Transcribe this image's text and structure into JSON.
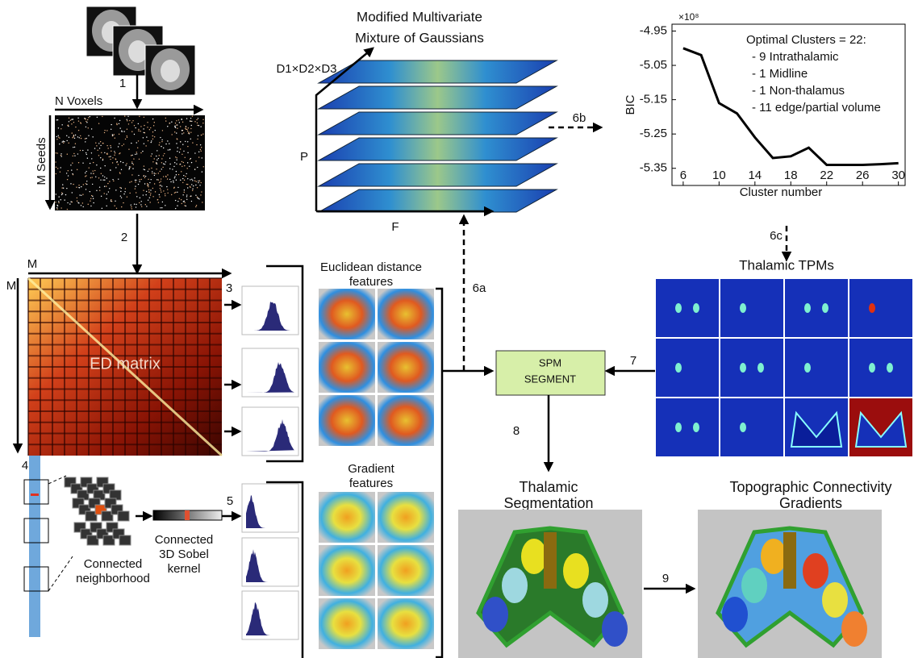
{
  "step_labels": [
    "1",
    "2",
    "3",
    "4",
    "5",
    "6a",
    "6b",
    "6c",
    "7",
    "8",
    "9"
  ],
  "seeds_matrix": {
    "x_label": "N Voxels",
    "y_label": "M Seeds"
  },
  "ed_matrix": {
    "x_label": "M",
    "y_label": "M",
    "label": "ED matrix"
  },
  "neighborhood": {
    "label": [
      "Connected",
      "neighborhood"
    ]
  },
  "sobel": {
    "label": [
      "Connected",
      "3D Sobel",
      "kernel"
    ]
  },
  "mixture": {
    "title": [
      "Modified Multivariate",
      "Mixture of Gaussians"
    ],
    "dims": "D1×D2×D3",
    "p_axis": "P",
    "f_axis": "F"
  },
  "ed_features": {
    "title": [
      "Euclidean distance",
      "features"
    ]
  },
  "gradient_features": {
    "title": [
      "Gradient",
      "features"
    ]
  },
  "spm": {
    "label": [
      "SPM",
      "SEGMENT"
    ]
  },
  "tpms": {
    "title": "Thalamic TPMs"
  },
  "segmentation": {
    "title": [
      "Thalamic",
      "Segmentation"
    ]
  },
  "gradients": {
    "title": [
      "Topographic Connectivity",
      "Gradients"
    ]
  },
  "bic_plot": {
    "type": "line",
    "y_label": "BIC",
    "x_label": "Cluster number",
    "multiplier": "×10⁸",
    "x": [
      6,
      8,
      10,
      12,
      14,
      16,
      18,
      20,
      22,
      24,
      26,
      28,
      30
    ],
    "values": [
      -5.0,
      -5.02,
      -5.16,
      -5.19,
      -5.26,
      -5.32,
      -5.315,
      -5.29,
      -5.34,
      -5.34,
      -5.34,
      -5.338,
      -5.335
    ],
    "color": "#000000",
    "xlim": [
      4.75,
      30.75
    ],
    "ylim": [
      -5.4,
      -4.93
    ],
    "xticks": [
      6,
      10,
      14,
      18,
      22,
      26,
      30
    ],
    "yticks": [
      -4.95,
      -5.05,
      -5.15,
      -5.25,
      -5.35
    ],
    "annotation": [
      "Optimal Clusters = 22:",
      "- 9 Intrathalamic",
      "- 1 Midline",
      "- 1 Non-thalamus",
      "- 11 edge/partial volume"
    ]
  }
}
